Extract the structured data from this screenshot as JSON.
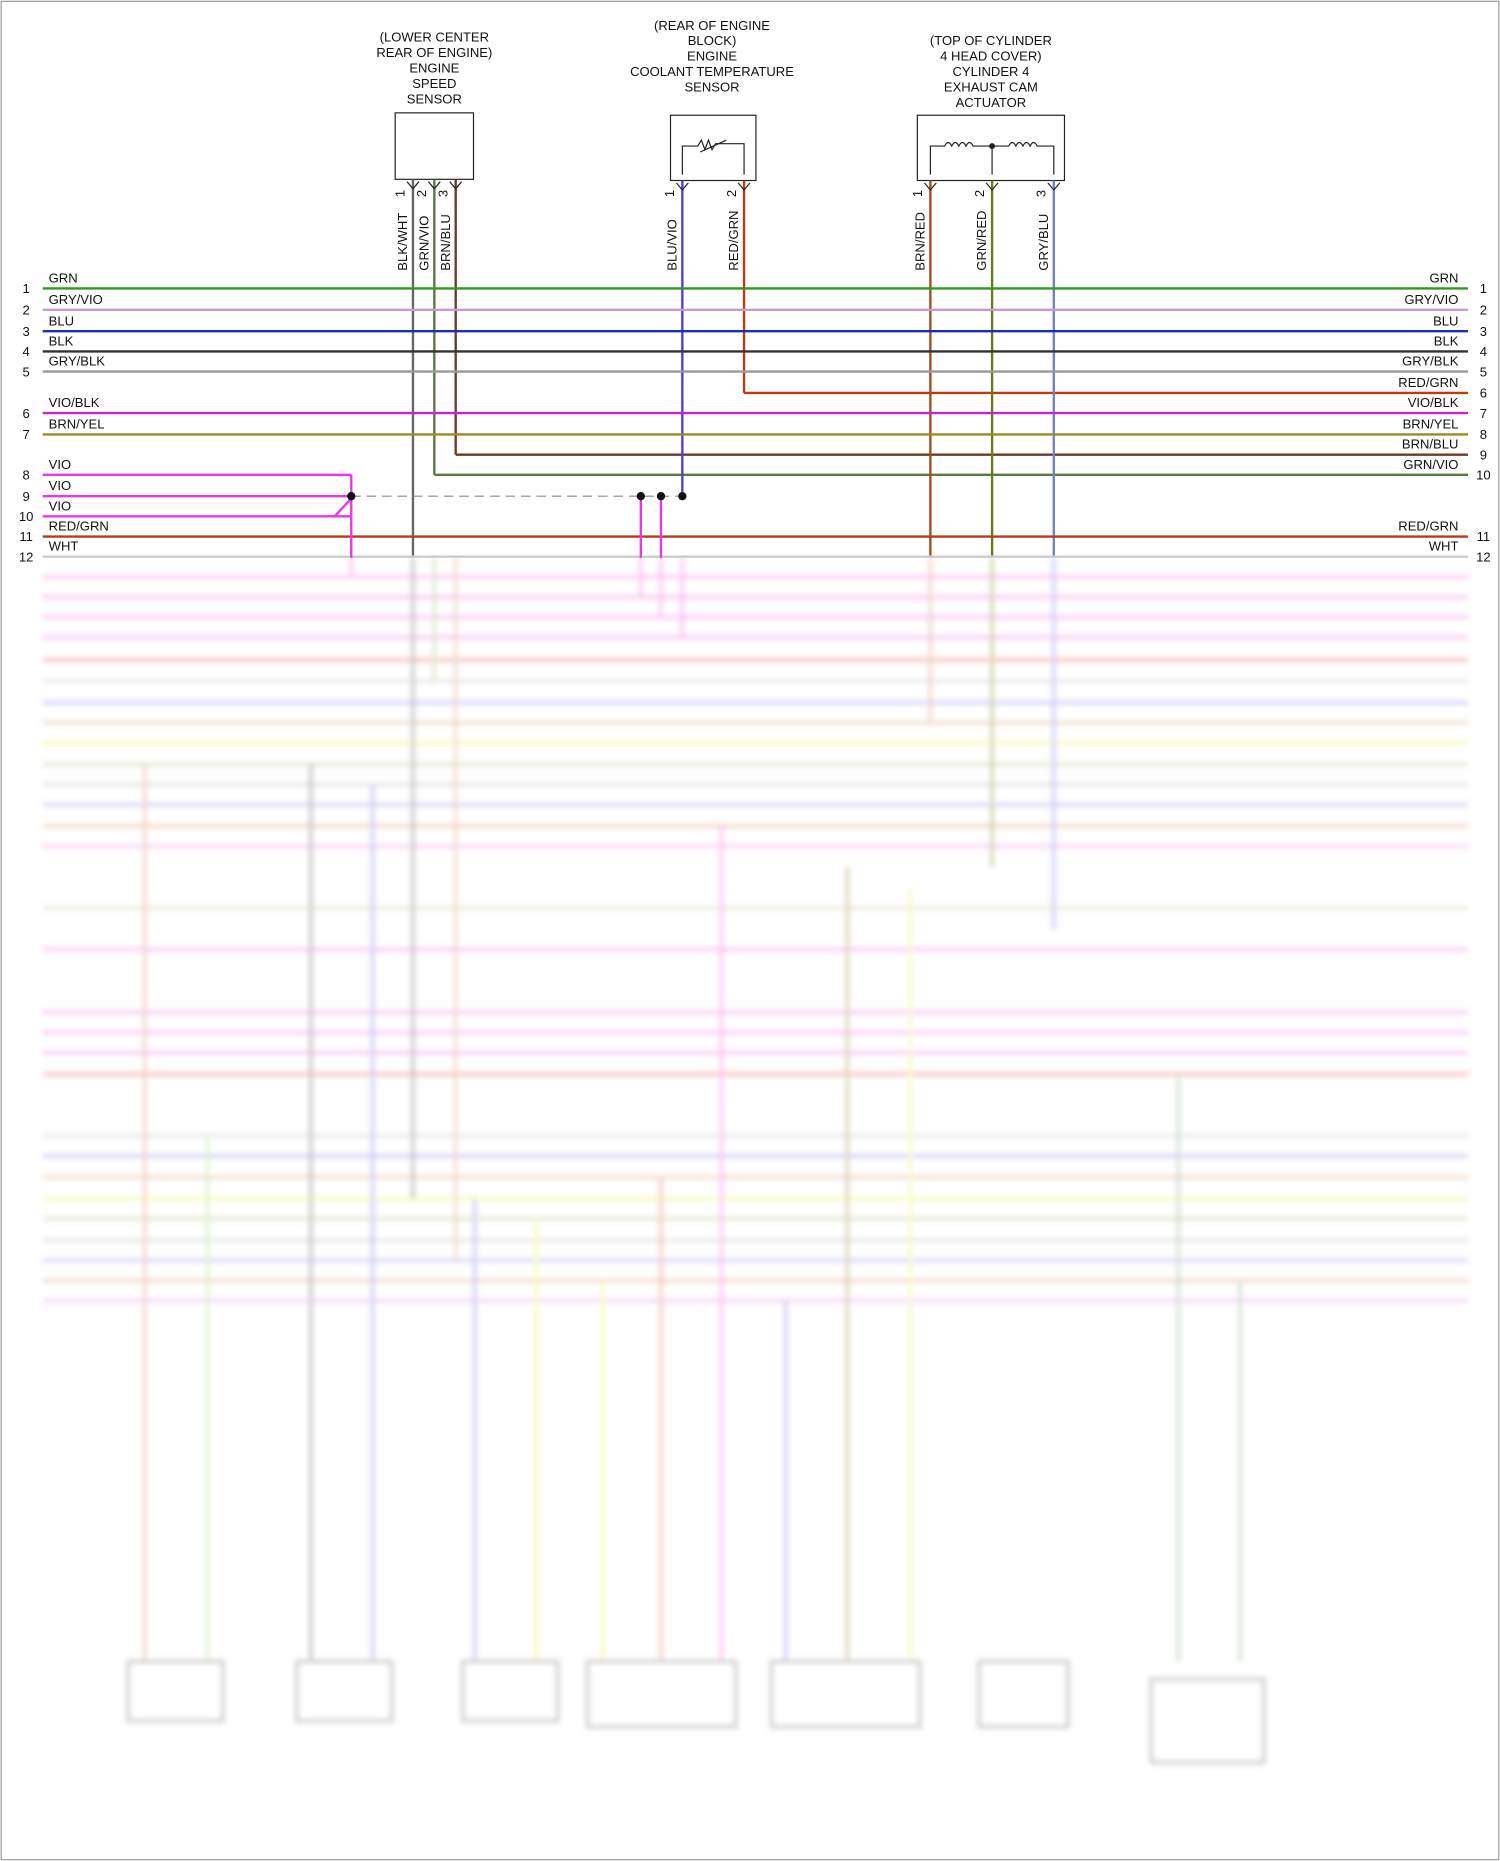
{
  "components": [
    {
      "label": [
        "(LOWER CENTER",
        "REAR OF ENGINE)",
        "ENGINE",
        "SPEED",
        "SENSOR"
      ],
      "pins": [
        1,
        2,
        3
      ],
      "wires": [
        {
          "label": "BLK/WHT",
          "color": "#666666"
        },
        {
          "label": "GRN/VIO",
          "color": "#5a7a3a"
        },
        {
          "label": "BRN/BLU",
          "color": "#6a3a2a"
        }
      ]
    },
    {
      "label": [
        "(REAR OF ENGINE",
        "BLOCK)",
        "ENGINE",
        "COOLANT TEMPERATURE",
        "SENSOR"
      ],
      "pins": [
        1,
        2
      ],
      "wires": [
        {
          "label": "BLU/VIO",
          "color": "#5a3ad0"
        },
        {
          "label": "RED/GRN",
          "color": "#c03a10"
        }
      ]
    },
    {
      "label": [
        "(TOP OF CYLINDER",
        "4 HEAD COVER)",
        "CYLINDER 4",
        "EXHAUST CAM",
        "ACTUATOR"
      ],
      "pins": [
        1,
        2,
        3
      ],
      "wires": [
        {
          "label": "BRN/RED",
          "color": "#a0501a"
        },
        {
          "label": "GRN/RED",
          "color": "#6a7a1a"
        },
        {
          "label": "GRY/BLU",
          "color": "#7080d0"
        }
      ]
    }
  ],
  "left_wires": [
    {
      "pin": 1,
      "label": "GRN",
      "color": "#2e9a1e"
    },
    {
      "pin": 2,
      "label": "GRY/VIO",
      "color": "#c89ad0"
    },
    {
      "pin": 3,
      "label": "BLU",
      "color": "#1a2bc0"
    },
    {
      "pin": 4,
      "label": "BLK",
      "color": "#333333"
    },
    {
      "pin": 5,
      "label": "GRY/BLK",
      "color": "#999999"
    },
    {
      "pin": 6,
      "label": "VIO/BLK",
      "color": "#cc22cc"
    },
    {
      "pin": 7,
      "label": "BRN/YEL",
      "color": "#a08a1a"
    },
    {
      "pin": 8,
      "label": "VIO",
      "color": "#ee33ee"
    },
    {
      "pin": 9,
      "label": "VIO",
      "color": "#ee33ee"
    },
    {
      "pin": 10,
      "label": "VIO",
      "color": "#ee33ee"
    },
    {
      "pin": 11,
      "label": "RED/GRN",
      "color": "#b83a1a"
    },
    {
      "pin": 12,
      "label": "WHT",
      "color": "#cccccc"
    }
  ],
  "right_wires": [
    {
      "pin": 1,
      "label": "GRN"
    },
    {
      "pin": 2,
      "label": "GRY/VIO"
    },
    {
      "pin": 3,
      "label": "BLU"
    },
    {
      "pin": 4,
      "label": "BLK"
    },
    {
      "pin": 5,
      "label": "GRY/BLK"
    },
    {
      "pin": 6,
      "label": "RED/GRN"
    },
    {
      "pin": 7,
      "label": "VIO/BLK"
    },
    {
      "pin": 8,
      "label": "BRN/YEL"
    },
    {
      "pin": 9,
      "label": "BRN/BLU"
    },
    {
      "pin": 10,
      "label": "GRN/VIO"
    },
    {
      "pin": 11,
      "label": "RED/GRN"
    },
    {
      "pin": 12,
      "label": "WHT"
    }
  ]
}
